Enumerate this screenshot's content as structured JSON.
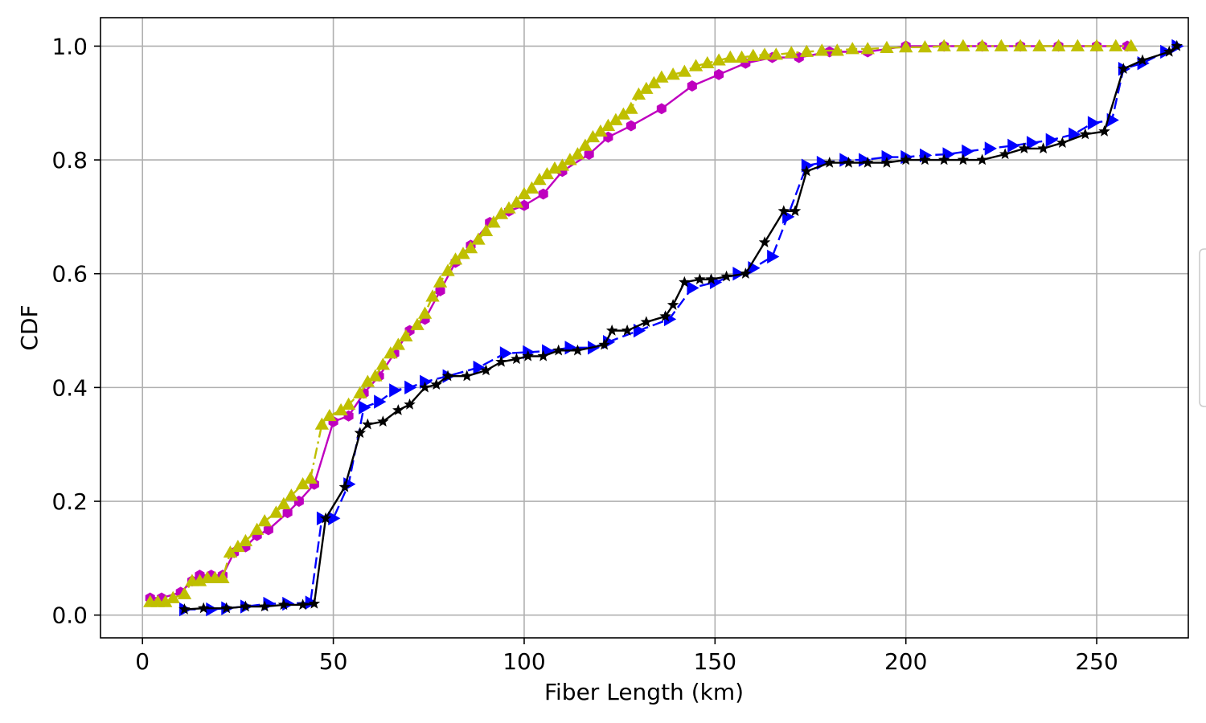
{
  "chart_data": {
    "type": "line",
    "xlabel": "Fiber Length (km)",
    "ylabel": "CDF",
    "xlim": [
      -11,
      274
    ],
    "ylim": [
      -0.04,
      1.05
    ],
    "xticks": [
      0,
      50,
      100,
      150,
      200,
      250
    ],
    "yticks": [
      0.0,
      0.2,
      0.4,
      0.6,
      0.8,
      1.0
    ],
    "ytick_labels": [
      "0.0",
      "0.2",
      "0.4",
      "0.6",
      "0.8",
      "1.0"
    ],
    "grid": true,
    "series": [
      {
        "color": "#bf00bf",
        "linestyle": "solid",
        "marker": "hexagon",
        "x": [
          2,
          5,
          10,
          13,
          15,
          18,
          21,
          24,
          27,
          30,
          33,
          38,
          41,
          45,
          50,
          54,
          58,
          62,
          66,
          70,
          74,
          78,
          82,
          86,
          91,
          96,
          100,
          105,
          110,
          117,
          122,
          128,
          136,
          144,
          151,
          158,
          165,
          172,
          180,
          190,
          200,
          210,
          220,
          230,
          240,
          250,
          258
        ],
        "y": [
          0.03,
          0.03,
          0.04,
          0.06,
          0.07,
          0.07,
          0.07,
          0.11,
          0.12,
          0.14,
          0.15,
          0.18,
          0.2,
          0.23,
          0.34,
          0.35,
          0.39,
          0.42,
          0.46,
          0.5,
          0.52,
          0.57,
          0.62,
          0.65,
          0.69,
          0.71,
          0.72,
          0.74,
          0.78,
          0.81,
          0.84,
          0.86,
          0.89,
          0.93,
          0.95,
          0.97,
          0.98,
          0.98,
          0.99,
          0.99,
          1.0,
          1.0,
          1.0,
          1.0,
          1.0,
          1.0,
          1.0
        ]
      },
      {
        "color": "#bfbf00",
        "linestyle": "dashdot",
        "marker": "triangle-up",
        "x": [
          2,
          4,
          6,
          8,
          11,
          13,
          15,
          17,
          19,
          21,
          23,
          25,
          27,
          30,
          32,
          35,
          37,
          39,
          42,
          44,
          47,
          49,
          52,
          54,
          57,
          59,
          61,
          63,
          65,
          67,
          69,
          72,
          74,
          76,
          78,
          80,
          82,
          84,
          86,
          88,
          90,
          92,
          94,
          96,
          98,
          100,
          102,
          104,
          106,
          108,
          110,
          112,
          114,
          116,
          118,
          120,
          122,
          124,
          126,
          128,
          130,
          132,
          134,
          136,
          139,
          142,
          145,
          148,
          151,
          154,
          157,
          160,
          163,
          166,
          170,
          174,
          178,
          182,
          186,
          190,
          195,
          200,
          205,
          210,
          215,
          220,
          225,
          230,
          235,
          240,
          245,
          250,
          255,
          259
        ],
        "y": [
          0.023,
          0.023,
          0.023,
          0.03,
          0.037,
          0.06,
          0.06,
          0.065,
          0.065,
          0.065,
          0.11,
          0.12,
          0.13,
          0.15,
          0.165,
          0.18,
          0.195,
          0.21,
          0.23,
          0.24,
          0.335,
          0.35,
          0.36,
          0.37,
          0.39,
          0.41,
          0.42,
          0.44,
          0.46,
          0.475,
          0.49,
          0.51,
          0.53,
          0.56,
          0.585,
          0.605,
          0.625,
          0.635,
          0.645,
          0.66,
          0.675,
          0.69,
          0.705,
          0.715,
          0.725,
          0.74,
          0.75,
          0.765,
          0.775,
          0.785,
          0.79,
          0.8,
          0.81,
          0.825,
          0.84,
          0.85,
          0.86,
          0.87,
          0.88,
          0.89,
          0.915,
          0.925,
          0.935,
          0.945,
          0.95,
          0.955,
          0.965,
          0.97,
          0.975,
          0.98,
          0.98,
          0.983,
          0.985,
          0.985,
          0.988,
          0.99,
          0.992,
          0.992,
          0.995,
          0.995,
          0.997,
          0.998,
          0.998,
          1.0,
          1.0,
          1.0,
          1.0,
          1.0,
          1.0,
          1.0,
          1.0,
          1.0,
          1.0,
          1.0
        ]
      },
      {
        "color": "#0000ff",
        "linestyle": "dashed",
        "marker": "triangle-right",
        "x": [
          11,
          18,
          22,
          27,
          33,
          38,
          44,
          47,
          50,
          54,
          58,
          62,
          66,
          70,
          74,
          80,
          88,
          95,
          101,
          106,
          112,
          118,
          122,
          130,
          138,
          144,
          150,
          156,
          160,
          165,
          169,
          174,
          178,
          184,
          189,
          195,
          200,
          205,
          211,
          216,
          222,
          228,
          233,
          238,
          244,
          249,
          254,
          257,
          262,
          268,
          271
        ],
        "y": [
          0.01,
          0.01,
          0.012,
          0.015,
          0.02,
          0.02,
          0.022,
          0.17,
          0.17,
          0.23,
          0.365,
          0.375,
          0.395,
          0.4,
          0.41,
          0.42,
          0.435,
          0.46,
          0.462,
          0.464,
          0.47,
          0.47,
          0.48,
          0.5,
          0.52,
          0.575,
          0.585,
          0.6,
          0.61,
          0.63,
          0.7,
          0.79,
          0.795,
          0.8,
          0.8,
          0.805,
          0.805,
          0.808,
          0.81,
          0.815,
          0.82,
          0.825,
          0.83,
          0.835,
          0.845,
          0.865,
          0.87,
          0.96,
          0.97,
          0.99,
          1.0
        ]
      },
      {
        "color": "#000000",
        "linestyle": "solid",
        "marker": "star",
        "x": [
          11,
          16,
          22,
          27,
          32,
          37,
          42,
          45,
          48,
          53,
          57,
          59,
          63,
          67,
          70,
          74,
          77,
          80,
          85,
          90,
          94,
          98,
          101,
          105,
          109,
          114,
          121,
          123,
          127,
          132,
          137,
          139,
          142,
          146,
          149,
          153,
          158,
          163,
          168,
          171,
          174,
          180,
          185,
          190,
          195,
          200,
          205,
          210,
          215,
          220,
          226,
          231,
          236,
          241,
          247,
          252,
          257,
          262,
          269,
          271
        ],
        "y": [
          0.01,
          0.012,
          0.012,
          0.015,
          0.015,
          0.018,
          0.018,
          0.02,
          0.17,
          0.225,
          0.32,
          0.335,
          0.34,
          0.36,
          0.37,
          0.4,
          0.405,
          0.42,
          0.42,
          0.43,
          0.445,
          0.45,
          0.455,
          0.455,
          0.465,
          0.465,
          0.475,
          0.5,
          0.5,
          0.515,
          0.525,
          0.545,
          0.585,
          0.59,
          0.59,
          0.595,
          0.6,
          0.655,
          0.71,
          0.71,
          0.78,
          0.795,
          0.795,
          0.795,
          0.795,
          0.8,
          0.8,
          0.8,
          0.8,
          0.8,
          0.81,
          0.82,
          0.82,
          0.83,
          0.845,
          0.85,
          0.96,
          0.975,
          0.99,
          1.0
        ]
      }
    ]
  }
}
